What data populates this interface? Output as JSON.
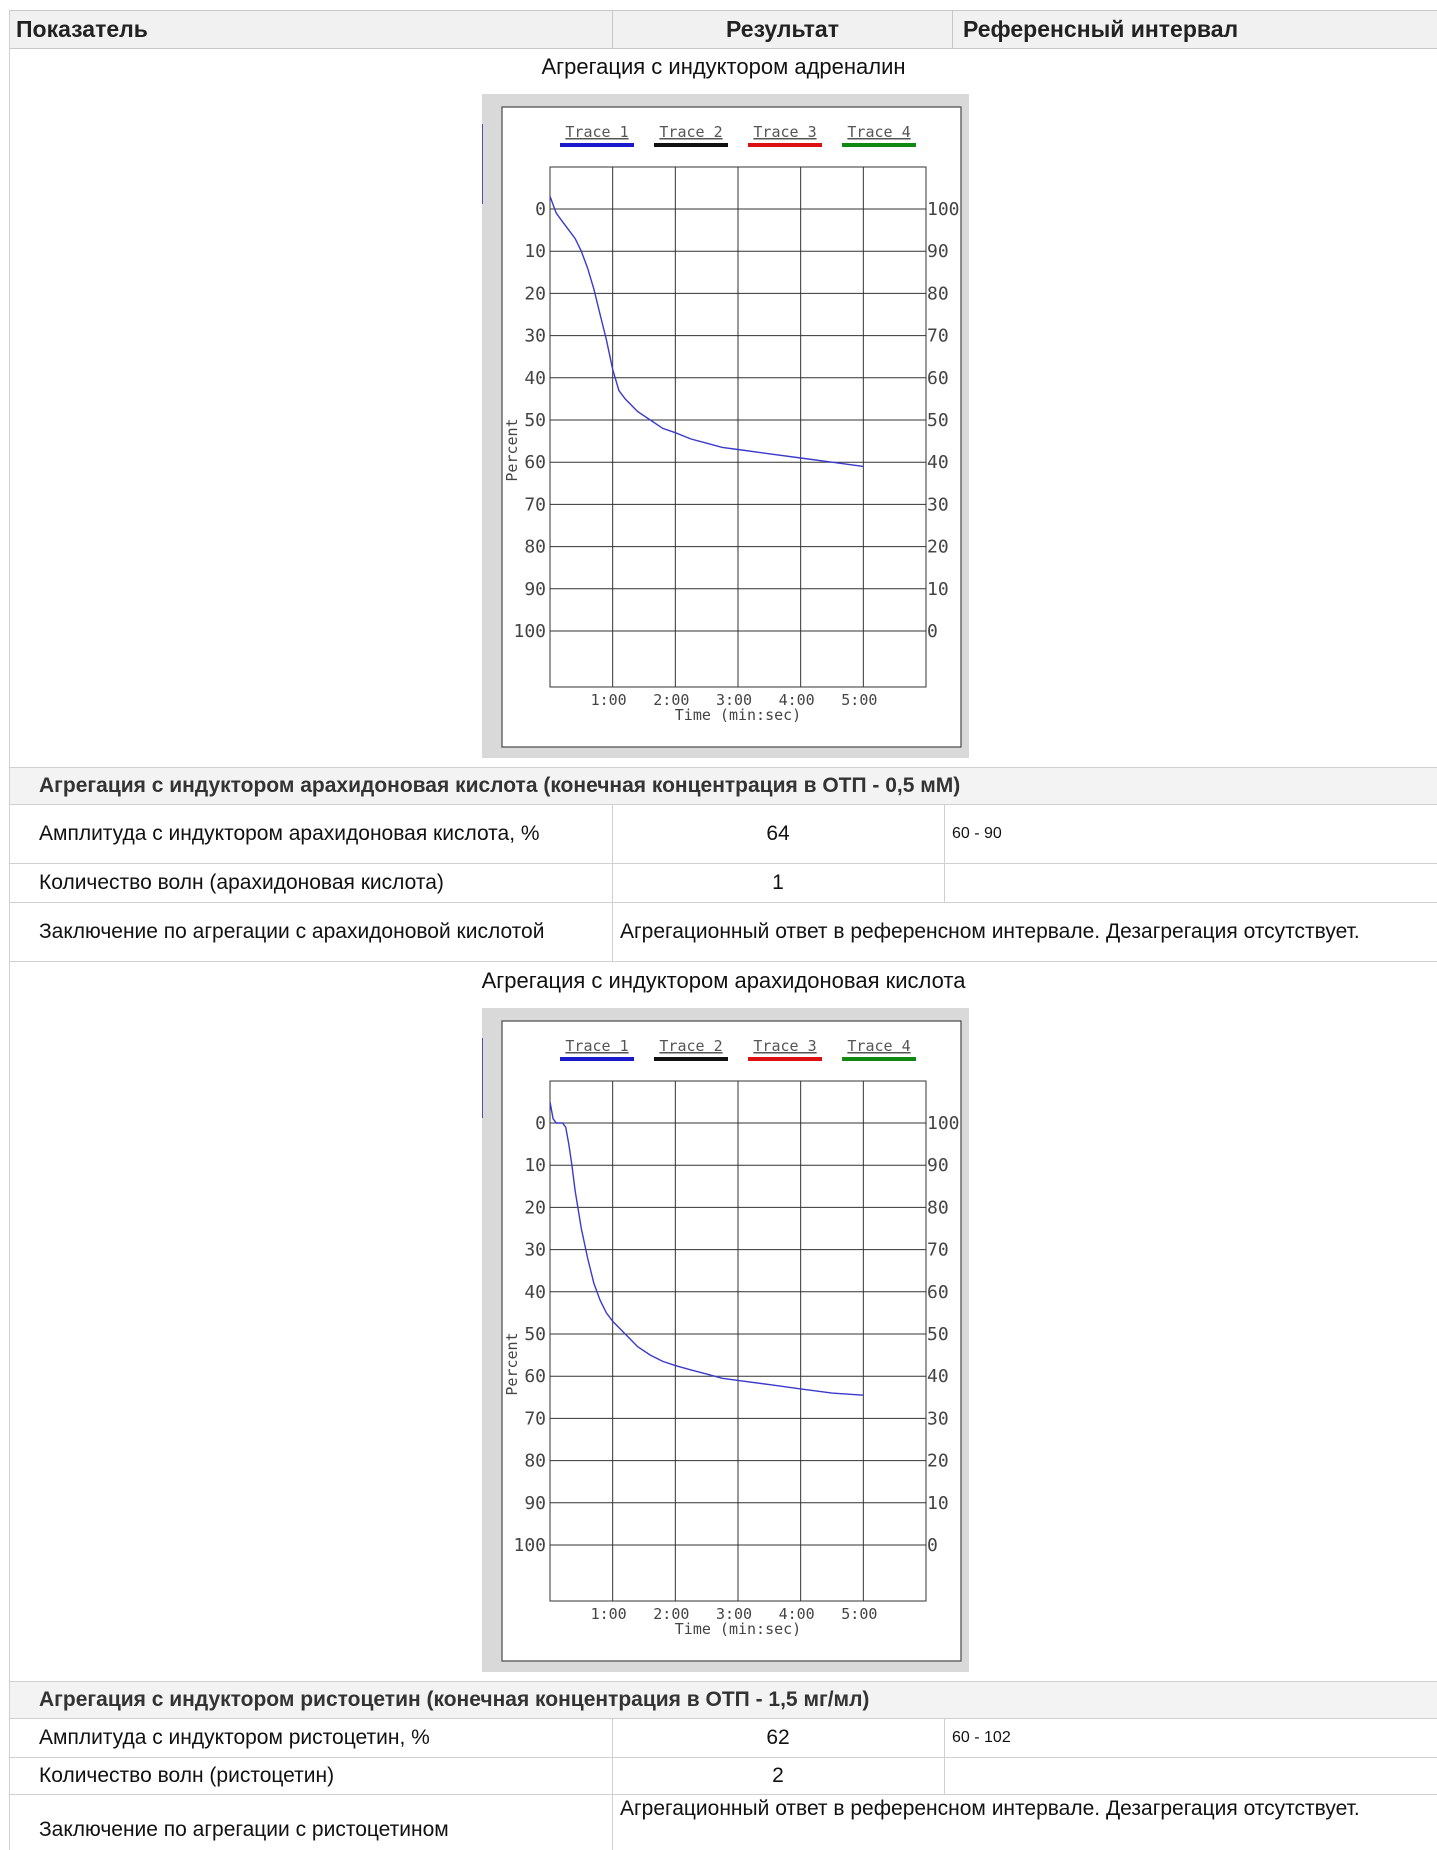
{
  "header": {
    "col_indicator": "Показатель",
    "col_result": "Результат",
    "col_reference": "Референсный интервал"
  },
  "chart1": {
    "caption": "Агрегация с индуктором адреналин",
    "chart_data": {
      "type": "line",
      "legend": [
        "Trace 1",
        "Trace 2",
        "Trace 3",
        "Trace 4"
      ],
      "legend_colors": [
        "#1a1acc",
        "#111111",
        "#dd1111",
        "#118811"
      ],
      "xlabel": "Time (min:sec)",
      "xticks": [
        "1:00",
        "2:00",
        "3:00",
        "4:00",
        "5:00"
      ],
      "ylabel": "Percent",
      "yticks_left": [
        "0",
        "10",
        "20",
        "30",
        "40",
        "50",
        "60",
        "70",
        "80",
        "90",
        "100"
      ],
      "yticks_right": [
        "100",
        "90",
        "80",
        "70",
        "60",
        "50",
        "40",
        "30",
        "20",
        "10",
        "0"
      ],
      "xlim": [
        0,
        6
      ],
      "ylim": [
        0,
        100
      ],
      "y_inverted": true,
      "grid": true,
      "legend_position": "top",
      "series": [
        {
          "name": "Trace 1",
          "color": "#3a3acc",
          "x": [
            0,
            0.05,
            0.1,
            0.2,
            0.3,
            0.4,
            0.5,
            0.6,
            0.7,
            0.8,
            0.9,
            1.0,
            1.1,
            1.2,
            1.4,
            1.6,
            1.8,
            2.0,
            2.25,
            2.5,
            2.75,
            3.0,
            3.5,
            4.0,
            4.5,
            5.0
          ],
          "y": [
            -3,
            -1,
            1,
            3,
            5,
            7,
            10,
            14,
            19,
            25,
            31,
            38,
            43,
            45,
            48,
            50,
            52,
            53,
            54.5,
            55.5,
            56.5,
            57,
            58,
            59,
            60,
            61
          ]
        }
      ]
    }
  },
  "section_arachidonic": {
    "title": "Агрегация с индуктором арахидоновая кислота (конечная концентрация в ОТП - 0,5 мМ)",
    "rows": [
      {
        "label": "Амплитуда с индуктором арахидоновая кислота, %",
        "result": "64",
        "reference": "60 - 90"
      },
      {
        "label": "Количество волн (арахидоновая кислота)",
        "result": "1",
        "reference": ""
      },
      {
        "label": "Заключение по агрегации с арахидоновой кислотой",
        "result": "Агрегационный ответ в референсном интервале. Дезагрегация отсутствует.",
        "reference": ""
      }
    ]
  },
  "chart2": {
    "caption": "Агрегация с индуктором арахидоновая кислота",
    "chart_data": {
      "type": "line",
      "legend": [
        "Trace 1",
        "Trace 2",
        "Trace 3",
        "Trace 4"
      ],
      "legend_colors": [
        "#1a1acc",
        "#111111",
        "#dd1111",
        "#118811"
      ],
      "xlabel": "Time (min:sec)",
      "xticks": [
        "1:00",
        "2:00",
        "3:00",
        "4:00",
        "5:00"
      ],
      "ylabel": "Percent",
      "yticks_left": [
        "0",
        "10",
        "20",
        "30",
        "40",
        "50",
        "60",
        "70",
        "80",
        "90",
        "100"
      ],
      "yticks_right": [
        "100",
        "90",
        "80",
        "70",
        "60",
        "50",
        "40",
        "30",
        "20",
        "10",
        "0"
      ],
      "xlim": [
        0,
        6
      ],
      "ylim": [
        0,
        100
      ],
      "y_inverted": true,
      "grid": true,
      "legend_position": "top",
      "series": [
        {
          "name": "Trace 1",
          "color": "#3a3acc",
          "x": [
            0,
            0.05,
            0.1,
            0.2,
            0.25,
            0.3,
            0.35,
            0.4,
            0.5,
            0.6,
            0.7,
            0.8,
            0.9,
            1.0,
            1.2,
            1.4,
            1.6,
            1.8,
            2.0,
            2.25,
            2.5,
            2.75,
            3.0,
            3.5,
            4.0,
            4.5,
            5.0
          ],
          "y": [
            -5,
            -1,
            0,
            0,
            1,
            5,
            10,
            16,
            25,
            32,
            38,
            42,
            45,
            47,
            50,
            53,
            55,
            56.5,
            57.5,
            58.5,
            59.5,
            60.5,
            61,
            62,
            63,
            64,
            64.5
          ]
        }
      ]
    }
  },
  "section_ristocetin": {
    "title": "Агрегация с индуктором ристоцетин (конечная концентрация в ОТП - 1,5 мг/мл)",
    "rows": [
      {
        "label": "Амплитуда с индуктором ристоцетин, %",
        "result": "62",
        "reference": "60 - 102"
      },
      {
        "label": "Количество волн (ристоцетин)",
        "result": "2",
        "reference": ""
      },
      {
        "label": "Заключение по агрегации с ристоцетином",
        "result": "Агрегационный ответ в референсном интервале. Дезагрегация отсутствует.",
        "reference": ""
      }
    ]
  }
}
